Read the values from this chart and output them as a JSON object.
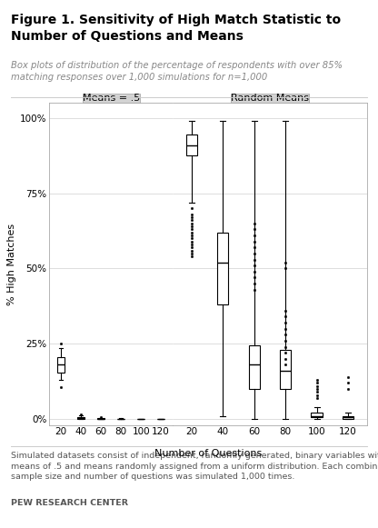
{
  "title": "Figure 1. Sensitivity of High Match Statistic to\nNumber of Questions and Means",
  "subtitle": "Box plots of distribution of the percentage of respondents with over 85%\nmatching responses over 1,000 simulations for n=1,000",
  "footer": "Simulated datasets consist of independent, randomly generated, binary variables with\nmeans of .5 and means randomly assigned from a uniform distribution. Each combination of\nsample size and number of questions was simulated 1,000 times.",
  "footer_bold": "PEW RESEARCH CENTER",
  "panel1_title": "Means = .5",
  "panel2_title": "Random Means",
  "xlabel": "Number of Questions",
  "ylabel": "% High Matches",
  "questions": [
    20,
    40,
    60,
    80,
    100,
    120
  ],
  "panel1_boxes": [
    {
      "med": 0.18,
      "q1": 0.155,
      "q3": 0.205,
      "whislo": 0.13,
      "whishi": 0.235,
      "fliers_low": [
        0.105
      ],
      "fliers_high": [
        0.25
      ]
    },
    {
      "med": 0.004,
      "q1": 0.001,
      "q3": 0.007,
      "whislo": 0.0,
      "whishi": 0.011,
      "fliers_low": [],
      "fliers_high": [
        0.014
      ]
    },
    {
      "med": 0.001,
      "q1": 0.0,
      "q3": 0.002,
      "whislo": 0.0,
      "whishi": 0.004,
      "fliers_low": [],
      "fliers_high": [
        0.007
      ]
    },
    {
      "med": 0.0,
      "q1": 0.0,
      "q3": 0.001,
      "whislo": 0.0,
      "whishi": 0.002,
      "fliers_low": [],
      "fliers_high": []
    },
    {
      "med": 0.0,
      "q1": 0.0,
      "q3": 0.001,
      "whislo": 0.0,
      "whishi": 0.001,
      "fliers_low": [],
      "fliers_high": []
    },
    {
      "med": 0.0,
      "q1": 0.0,
      "q3": 0.0,
      "whislo": 0.0,
      "whishi": 0.001,
      "fliers_low": [],
      "fliers_high": []
    }
  ],
  "panel2_boxes": [
    {
      "med": 0.91,
      "q1": 0.875,
      "q3": 0.945,
      "whislo": 0.72,
      "whishi": 0.99,
      "fliers_low": [
        0.7,
        0.68,
        0.67,
        0.66,
        0.65,
        0.64,
        0.63,
        0.62,
        0.61,
        0.6,
        0.59,
        0.58,
        0.57,
        0.56,
        0.55,
        0.54
      ],
      "fliers_high": []
    },
    {
      "med": 0.52,
      "q1": 0.38,
      "q3": 0.62,
      "whislo": 0.01,
      "whishi": 0.99,
      "fliers_low": [],
      "fliers_high": []
    },
    {
      "med": 0.18,
      "q1": 0.1,
      "q3": 0.245,
      "whislo": 0.0,
      "whishi": 0.99,
      "fliers_low": [],
      "fliers_high": [
        0.65,
        0.63,
        0.61,
        0.59,
        0.57,
        0.55,
        0.53,
        0.51,
        0.49,
        0.47,
        0.45,
        0.43
      ]
    },
    {
      "med": 0.16,
      "q1": 0.1,
      "q3": 0.23,
      "whislo": 0.0,
      "whishi": 0.99,
      "fliers_low": [],
      "fliers_high": [
        0.36,
        0.34,
        0.32,
        0.3,
        0.28,
        0.26,
        0.24,
        0.22,
        0.2,
        0.18,
        0.5,
        0.52
      ]
    },
    {
      "med": 0.01,
      "q1": 0.005,
      "q3": 0.02,
      "whislo": 0.0,
      "whishi": 0.04,
      "fliers_low": [],
      "fliers_high": [
        0.07,
        0.08,
        0.09,
        0.1,
        0.11,
        0.12,
        0.13
      ]
    },
    {
      "med": 0.005,
      "q1": 0.0,
      "q3": 0.01,
      "whislo": 0.0,
      "whishi": 0.02,
      "fliers_low": [],
      "fliers_high": [
        0.1,
        0.12,
        0.14
      ]
    }
  ],
  "bg_color": "#ffffff",
  "panel_header_color": "#d3d3d3",
  "box_color": "#ffffff",
  "box_edge_color": "#000000",
  "median_color": "#000000",
  "whisker_color": "#000000",
  "flier_color": "#000000",
  "grid_color": "#d0d0d0",
  "title_color": "#000000",
  "subtitle_color": "#888888",
  "footer_color": "#555555",
  "title_fontsize": 10.0,
  "subtitle_fontsize": 7.2,
  "footer_fontsize": 6.8,
  "label_fontsize": 8.0,
  "tick_fontsize": 7.5,
  "panel_title_fontsize": 8.0
}
